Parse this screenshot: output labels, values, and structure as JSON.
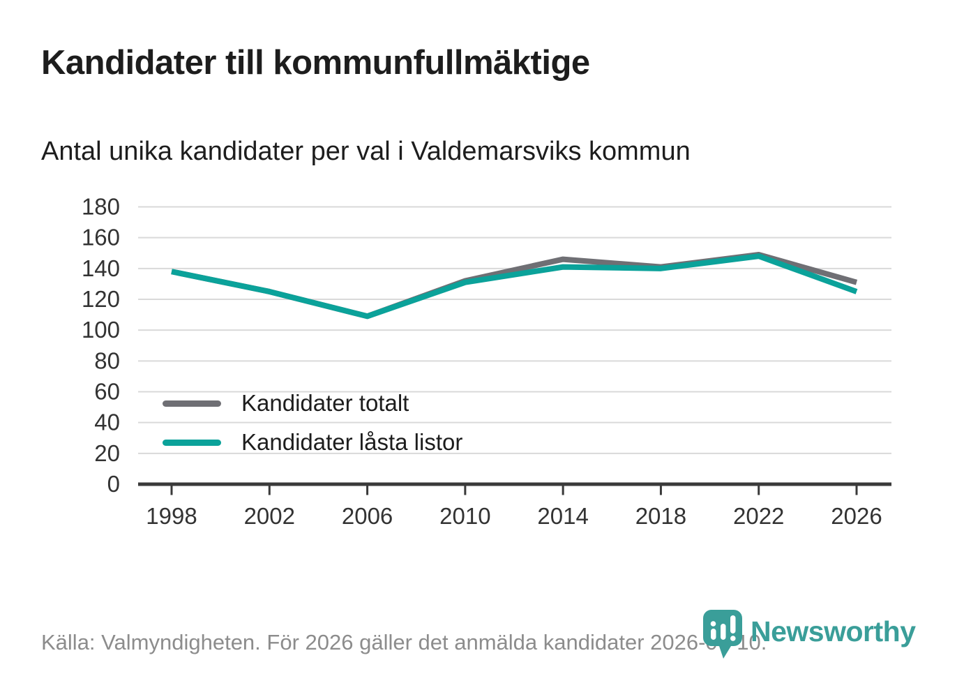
{
  "header": {
    "title": "Kandidater till kommunfullmäktige",
    "subtitle": "Antal unika kandidater per val i Valdemarsviks kommun"
  },
  "chart_data": {
    "type": "line",
    "x": [
      1998,
      2002,
      2006,
      2010,
      2014,
      2018,
      2022,
      2026
    ],
    "xticks": [
      1998,
      2002,
      2006,
      2010,
      2014,
      2018,
      2022,
      2026
    ],
    "series": [
      {
        "name": "Kandidater totalt",
        "color": "#6f6f74",
        "values": [
          138,
          125,
          109,
          132,
          146,
          141,
          149,
          131
        ]
      },
      {
        "name": "Kandidater låsta listor",
        "color": "#0ba29a",
        "values": [
          138,
          125,
          109,
          131,
          141,
          140,
          148,
          125
        ]
      }
    ],
    "title": "Kandidater till kommunfullmäktige",
    "subtitle": "Antal unika kandidater per val i Valdemarsviks kommun",
    "xlabel": "",
    "ylabel": "",
    "ylim": [
      0,
      180
    ],
    "ytick_step": 20,
    "grid": "horizontal",
    "legend_position": "inside-bottom-left"
  },
  "footer": {
    "source": "Källa: Valmyndigheten. För 2026 gäller det anmälda kandidater 2026-04-10."
  },
  "branding": {
    "logo_text": "Newsworthy",
    "logo_icon": "bar-chart-pin-icon",
    "color": "#3a9e99"
  },
  "colors": {
    "gridline": "#d9d9d9",
    "axis": "#3a3a3a",
    "tick_label": "#333333",
    "title_text": "#1d1d1d",
    "footer_text": "#8c8c8c",
    "background": "#ffffff"
  }
}
